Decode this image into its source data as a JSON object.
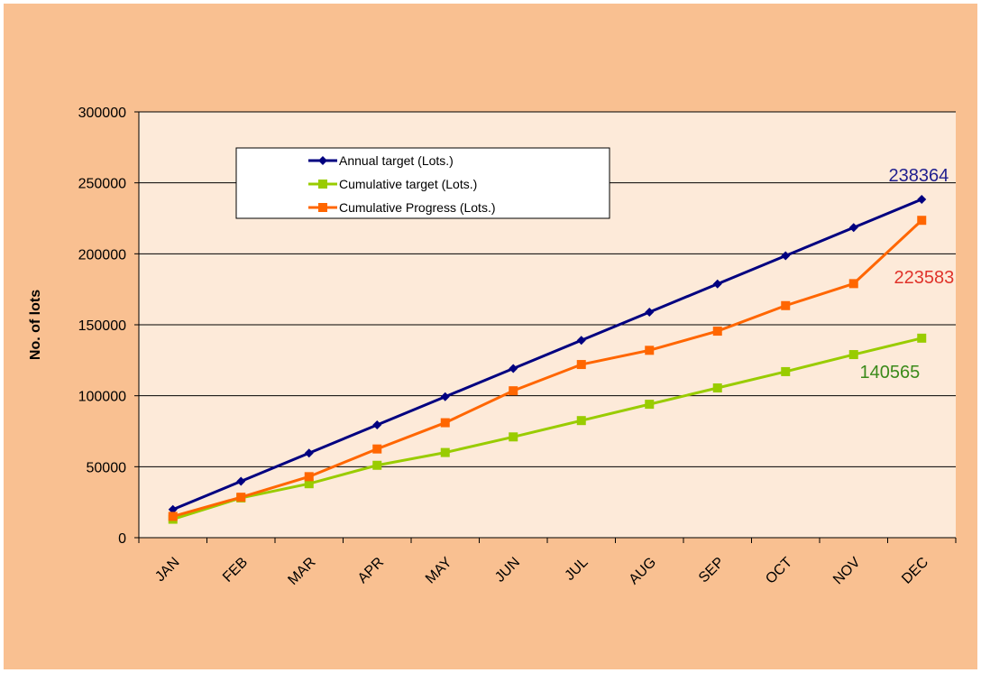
{
  "chart_data": {
    "type": "line",
    "title": "",
    "xlabel": "",
    "ylabel": "No. of lots",
    "ylim": [
      0,
      300000
    ],
    "yticks": [
      0,
      50000,
      100000,
      150000,
      200000,
      250000,
      300000
    ],
    "categories": [
      "JAN",
      "FEB",
      "MAR",
      "APR",
      "MAY",
      "JUN",
      "JUL",
      "AUG",
      "SEP",
      "OCT",
      "NOV",
      "DEC"
    ],
    "grid": "horizontal",
    "legend_position": "top-left inside plot",
    "series": [
      {
        "name": "Annual target (Lots.)",
        "color": "#000080",
        "marker": "diamond",
        "values": [
          19864,
          39727,
          59591,
          79455,
          99318,
          119182,
          139046,
          158909,
          178773,
          198637,
          218500,
          238364
        ]
      },
      {
        "name": "Cumulative target (Lots.)",
        "color": "#99cc00",
        "marker": "square",
        "values": [
          13000,
          28000,
          38000,
          51000,
          60000,
          71000,
          82500,
          94000,
          105500,
          117000,
          129000,
          140565
        ]
      },
      {
        "name": "Cumulative Progress (Lots.)",
        "color": "#ff6600",
        "marker": "square",
        "values": [
          15000,
          28500,
          43000,
          62500,
          81000,
          103500,
          122000,
          132000,
          145500,
          163500,
          179000,
          223583
        ]
      }
    ],
    "annotations": [
      {
        "text": "238364",
        "color": "#1f1f8f",
        "series": 0
      },
      {
        "text": "223583",
        "color": "#e0332a",
        "series": 2
      },
      {
        "text": "140565",
        "color": "#3a8a1a",
        "series": 1
      }
    ]
  }
}
